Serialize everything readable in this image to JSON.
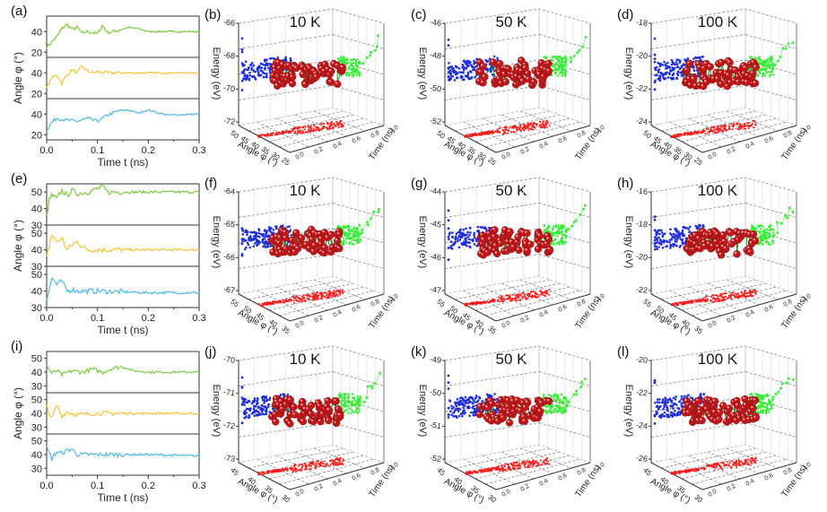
{
  "figure": {
    "left_panels": [
      {
        "label": "(a)",
        "ylabel": "Angle φ (°)",
        "xlabel": "Time t (ns)"
      },
      {
        "label": "(e)",
        "ylabel": "Angle φ (°)",
        "xlabel": "Time t (ns)"
      },
      {
        "label": "(i)",
        "ylabel": "Angle φ (°)",
        "xlabel": "Time t (ns)"
      }
    ],
    "grid_panels": [
      {
        "label": "(b)",
        "title": "10 K"
      },
      {
        "label": "(c)",
        "title": "50 K"
      },
      {
        "label": "(d)",
        "title": "100 K"
      },
      {
        "label": "(f)",
        "title": "10 K"
      },
      {
        "label": "(g)",
        "title": "50 K"
      },
      {
        "label": "(h)",
        "title": "100 K"
      },
      {
        "label": "(j)",
        "title": "10 K"
      },
      {
        "label": "(k)",
        "title": "50 K"
      },
      {
        "label": "(l)",
        "title": "100 K"
      }
    ]
  },
  "chart_data": [
    {
      "id": "a",
      "type": "line",
      "xlabel": "Time t (ns)",
      "ylabel": "Angle φ (°)",
      "xlim": [
        0,
        0.3
      ],
      "xticks": [
        "0.0",
        "0.1",
        "0.2",
        "0.3"
      ],
      "subplots": [
        {
          "color": "#7ac943",
          "ylim": [
            15,
            55
          ],
          "yticks": [
            20,
            40
          ],
          "x": [
            0,
            0.01,
            0.02,
            0.03,
            0.04,
            0.05,
            0.06,
            0.07,
            0.08,
            0.1,
            0.11,
            0.12,
            0.14,
            0.16,
            0.18,
            0.2,
            0.22,
            0.25,
            0.3
          ],
          "y": [
            25,
            30,
            35,
            43,
            47,
            42,
            44,
            38,
            40,
            38,
            46,
            39,
            41,
            44,
            43,
            40,
            40,
            40,
            40
          ]
        },
        {
          "color": "#f5c33b",
          "ylim": [
            15,
            55
          ],
          "yticks": [
            20,
            40
          ],
          "x": [
            0,
            0.01,
            0.02,
            0.03,
            0.04,
            0.05,
            0.06,
            0.07,
            0.08,
            0.09,
            0.1,
            0.12,
            0.15,
            0.2,
            0.25,
            0.3
          ],
          "y": [
            25,
            35,
            38,
            30,
            38,
            43,
            40,
            46,
            42,
            40,
            41,
            40,
            40,
            40,
            40,
            40
          ]
        },
        {
          "color": "#4db8e8",
          "ylim": [
            15,
            55
          ],
          "yticks": [
            20,
            40
          ],
          "x": [
            0,
            0.01,
            0.02,
            0.04,
            0.06,
            0.08,
            0.1,
            0.12,
            0.14,
            0.16,
            0.18,
            0.2,
            0.22,
            0.24,
            0.3
          ],
          "y": [
            25,
            32,
            36,
            34,
            33,
            36,
            33,
            39,
            43,
            44,
            41,
            44,
            41,
            39,
            40
          ]
        }
      ]
    },
    {
      "id": "e",
      "type": "line",
      "xlabel": "Time t (ns)",
      "ylabel": "Angle φ (°)",
      "xlim": [
        0,
        0.3
      ],
      "xticks": [
        "0.0",
        "0.1",
        "0.2",
        "0.3"
      ],
      "subplots": [
        {
          "color": "#7ac943",
          "ylim": [
            30,
            55
          ],
          "yticks": [
            30,
            40,
            50
          ],
          "x": [
            0,
            0.005,
            0.01,
            0.02,
            0.03,
            0.04,
            0.05,
            0.06,
            0.08,
            0.1,
            0.11,
            0.12,
            0.15,
            0.2,
            0.25,
            0.3
          ],
          "y": [
            35,
            45,
            48,
            46,
            51,
            48,
            51,
            49,
            50,
            52,
            53,
            50,
            50,
            50,
            50,
            50
          ]
        },
        {
          "color": "#f5c33b",
          "ylim": [
            30,
            55
          ],
          "yticks": [
            30,
            40,
            50
          ],
          "x": [
            0,
            0.01,
            0.02,
            0.03,
            0.04,
            0.05,
            0.06,
            0.07,
            0.08,
            0.1,
            0.15,
            0.2,
            0.3
          ],
          "y": [
            35,
            49,
            45,
            47,
            40,
            43,
            45,
            42,
            40,
            40,
            40,
            40,
            40
          ]
        },
        {
          "color": "#4db8e8",
          "ylim": [
            30,
            55
          ],
          "yticks": [
            30,
            40,
            50
          ],
          "x": [
            0,
            0.01,
            0.02,
            0.03,
            0.04,
            0.05,
            0.06,
            0.1,
            0.2,
            0.3
          ],
          "y": [
            35,
            48,
            44,
            46,
            40,
            41,
            40,
            40,
            39,
            39
          ]
        }
      ]
    },
    {
      "id": "i",
      "type": "line",
      "xlabel": "Time t (ns)",
      "ylabel": "Angle φ (°)",
      "xlim": [
        0,
        0.3
      ],
      "xticks": [
        "0.0",
        "0.1",
        "0.2",
        "0.3"
      ],
      "subplots": [
        {
          "color": "#7ac943",
          "ylim": [
            25,
            55
          ],
          "yticks": [
            30,
            40,
            50
          ],
          "x": [
            0,
            0.01,
            0.02,
            0.03,
            0.05,
            0.07,
            0.09,
            0.11,
            0.13,
            0.15,
            0.17,
            0.2,
            0.25,
            0.3
          ],
          "y": [
            45,
            39,
            41,
            38,
            41,
            40,
            42,
            40,
            43,
            44,
            41,
            40,
            40,
            40
          ]
        },
        {
          "color": "#f5c33b",
          "ylim": [
            25,
            55
          ],
          "yticks": [
            30,
            40,
            50
          ],
          "x": [
            0,
            0.01,
            0.02,
            0.03,
            0.04,
            0.06,
            0.1,
            0.2,
            0.3
          ],
          "y": [
            45,
            36,
            46,
            38,
            41,
            39,
            40,
            40,
            40
          ]
        },
        {
          "color": "#4db8e8",
          "ylim": [
            25,
            55
          ],
          "yticks": [
            30,
            40,
            50
          ],
          "x": [
            0,
            0.01,
            0.02,
            0.03,
            0.04,
            0.05,
            0.06,
            0.08,
            0.15,
            0.2,
            0.3
          ],
          "y": [
            45,
            37,
            42,
            41,
            43,
            44,
            40,
            40,
            40,
            40,
            39
          ]
        }
      ]
    },
    {
      "id": "b",
      "type": "scatter",
      "title": "10 K",
      "zlabel": "Energy (eV)",
      "xlabel": "Angle φ (°)",
      "ylabel": "Time (ns)",
      "zticks": [
        "-66",
        "-68",
        "-70",
        "-72"
      ],
      "xticks": [
        "50",
        "45",
        "40",
        "35",
        "30",
        "25"
      ],
      "yticks": [
        "0.0",
        "0.2",
        "0.4",
        "0.6",
        "0.8",
        "1.0"
      ]
    },
    {
      "id": "c",
      "type": "scatter",
      "title": "50 K",
      "zlabel": "Energy (eV)",
      "xlabel": "Angle φ (°)",
      "ylabel": "Time (ns)",
      "zticks": [
        "-46",
        "-48",
        "-50",
        "-52"
      ],
      "xticks": [
        "50",
        "45",
        "40",
        "35",
        "30",
        "25"
      ],
      "yticks": [
        "0.0",
        "0.2",
        "0.4",
        "0.6",
        "0.8",
        "1.0"
      ]
    },
    {
      "id": "d",
      "type": "scatter",
      "title": "100 K",
      "zlabel": "Energy (eV)",
      "xlabel": "Angle φ (°)",
      "ylabel": "Time (ns)",
      "zticks": [
        "-18",
        "-20",
        "-22",
        "-24"
      ],
      "xticks": [
        "50",
        "45",
        "40",
        "35",
        "30",
        "25"
      ],
      "yticks": [
        "0.0",
        "0.2",
        "0.4",
        "0.6",
        "0.8",
        "1.0"
      ]
    },
    {
      "id": "f",
      "type": "scatter",
      "title": "10 K",
      "zlabel": "Energy (eV)",
      "xlabel": "Angle φ (°)",
      "ylabel": "Time (ns)",
      "zticks": [
        "-64",
        "-65",
        "-66",
        "-67"
      ],
      "xticks": [
        "55",
        "50",
        "45",
        "40",
        "35"
      ],
      "yticks": [
        "0.0",
        "0.2",
        "0.4",
        "0.6",
        "0.8",
        "1.0"
      ]
    },
    {
      "id": "g",
      "type": "scatter",
      "title": "50 K",
      "zlabel": "Energy (eV)",
      "xlabel": "Angle φ (°)",
      "ylabel": "Time (ns)",
      "zticks": [
        "-44",
        "-45",
        "-46",
        "-47"
      ],
      "xticks": [
        "55",
        "50",
        "45",
        "40",
        "35"
      ],
      "yticks": [
        "0.0",
        "0.2",
        "0.4",
        "0.6",
        "0.8",
        "1.0"
      ]
    },
    {
      "id": "h",
      "type": "scatter",
      "title": "100 K",
      "zlabel": "Energy (eV)",
      "xlabel": "Angle φ (°)",
      "ylabel": "Time (ns)",
      "zticks": [
        "-16",
        "-18",
        "-20",
        "-22"
      ],
      "xticks": [
        "55",
        "50",
        "45",
        "40",
        "35"
      ],
      "yticks": [
        "0.0",
        "0.2",
        "0.4",
        "0.6",
        "0.8",
        "1.0"
      ]
    },
    {
      "id": "j",
      "type": "scatter",
      "title": "10 K",
      "zlabel": "Energy (eV)",
      "xlabel": "Angle φ (°)",
      "ylabel": "Time (ns)",
      "zticks": [
        "-70",
        "-71",
        "-72",
        "-73"
      ],
      "xticks": [
        "45",
        "40",
        "35",
        "30"
      ],
      "yticks": [
        "0.0",
        "0.2",
        "0.4",
        "0.6",
        "0.8",
        "1.0"
      ]
    },
    {
      "id": "k",
      "type": "scatter",
      "title": "50 K",
      "zlabel": "Energy (eV)",
      "xlabel": "Angle φ (°)",
      "ylabel": "Time (ns)",
      "zticks": [
        "-49",
        "-50",
        "-51",
        "-52"
      ],
      "xticks": [
        "45",
        "40",
        "35",
        "30"
      ],
      "yticks": [
        "0.0",
        "0.2",
        "0.4",
        "0.6",
        "0.8",
        "1.0"
      ]
    },
    {
      "id": "l",
      "type": "scatter",
      "title": "100 K",
      "zlabel": "Energy (eV)",
      "xlabel": "Angle φ (°)",
      "ylabel": "Time (ns)",
      "zticks": [
        "-20",
        "-22",
        "-24",
        "-26"
      ],
      "xticks": [
        "45",
        "40",
        "35",
        "30"
      ],
      "yticks": [
        "0.0",
        "0.2",
        "0.4",
        "0.6",
        "0.8",
        "1.0"
      ]
    }
  ],
  "colors": {
    "green_line": "#7ac943",
    "yellow_line": "#f5c33b",
    "blue_line": "#4db8e8",
    "blue_proj": "#1f2fd6",
    "green_proj": "#33ee33",
    "red_proj": "#ff1a1a",
    "ball": "#c0181a",
    "ball_link": "#2e8b2e"
  }
}
